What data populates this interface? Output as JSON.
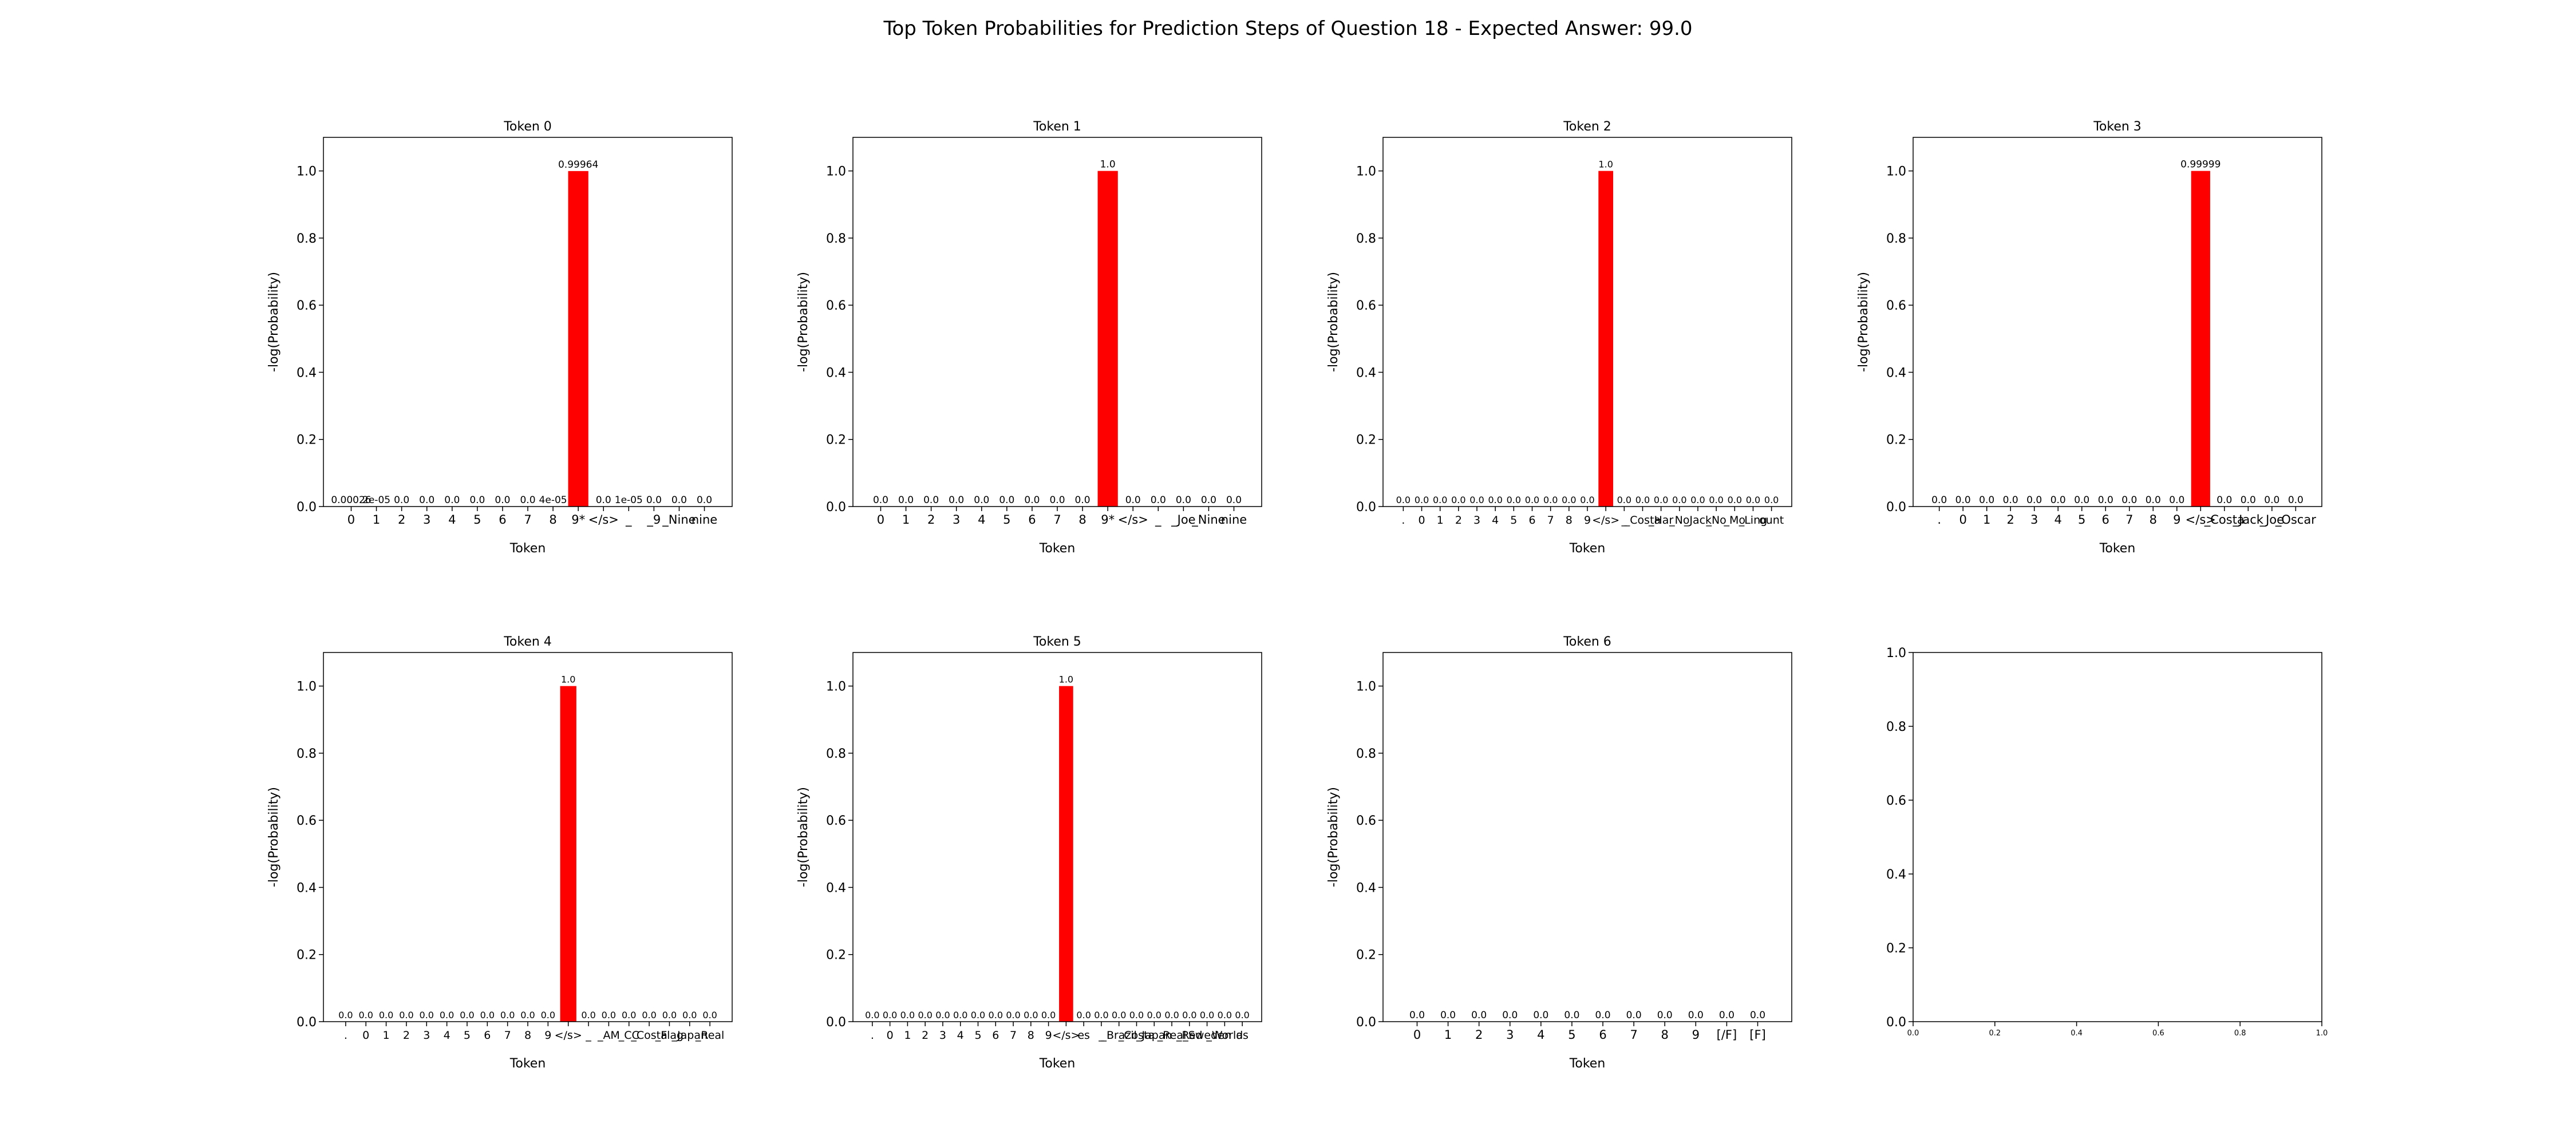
{
  "figure": {
    "title": "Top Token Probabilities for Prediction Steps of Question 18 - Expected Answer: 99.0"
  },
  "chart_data": [
    {
      "type": "bar",
      "title": "Token 0",
      "xlabel": "Token",
      "ylabel": "-log(Probability)",
      "ylim": [
        0,
        1.1
      ],
      "yticks": [
        "0.0",
        "0.2",
        "0.4",
        "0.6",
        "0.8",
        "1.0"
      ],
      "categories": [
        "0",
        "1",
        "2",
        "3",
        "4",
        "5",
        "6",
        "7",
        "8",
        "9*",
        "</s>",
        "_",
        "_9",
        "_Nine",
        "nine"
      ],
      "values": [
        0.00026,
        2e-05,
        0,
        0,
        0,
        0,
        0,
        0,
        4e-05,
        0.99964,
        0,
        1e-05,
        0,
        0,
        0
      ],
      "value_labels": [
        "0.00026",
        "2e-05",
        "0.0",
        "0.0",
        "0.0",
        "0.0",
        "0.0",
        "0.0",
        "4e-05",
        "0.99964",
        "0.0",
        "1e-05",
        "0.0",
        "0.0",
        "0.0"
      ],
      "bar_color": "#ff0000"
    },
    {
      "type": "bar",
      "title": "Token 1",
      "xlabel": "Token",
      "ylabel": "-log(Probability)",
      "ylim": [
        0,
        1.1
      ],
      "yticks": [
        "0.0",
        "0.2",
        "0.4",
        "0.6",
        "0.8",
        "1.0"
      ],
      "categories": [
        "0",
        "1",
        "2",
        "3",
        "4",
        "5",
        "6",
        "7",
        "8",
        "9*",
        "</s>",
        "_",
        "_Joe",
        "_Nine",
        "nine"
      ],
      "values": [
        0,
        0,
        0,
        0,
        0,
        0,
        0,
        0,
        0,
        1.0,
        0,
        0,
        0,
        0,
        0
      ],
      "value_labels": [
        "0.0",
        "0.0",
        "0.0",
        "0.0",
        "0.0",
        "0.0",
        "0.0",
        "0.0",
        "0.0",
        "1.0",
        "0.0",
        "0.0",
        "0.0",
        "0.0",
        "0.0"
      ],
      "bar_color": "#ff0000"
    },
    {
      "type": "bar",
      "title": "Token 2",
      "xlabel": "Token",
      "ylabel": "-log(Probability)",
      "ylim": [
        0,
        1.1
      ],
      "yticks": [
        "0.0",
        "0.2",
        "0.4",
        "0.6",
        "0.8",
        "1.0"
      ],
      "categories": [
        ".",
        "0",
        "1",
        "2",
        "3",
        "4",
        "5",
        "6",
        "7",
        "8",
        "9",
        "</s>",
        "_",
        "_Costa",
        "_Har",
        "_No",
        "_Jack",
        "_No",
        "_Mo",
        "_Ling",
        "ount"
      ],
      "values": [
        0,
        0,
        0,
        0,
        0,
        0,
        0,
        0,
        0,
        0,
        0,
        1.0,
        0,
        0,
        0,
        0,
        0,
        0,
        0,
        0,
        0
      ],
      "value_labels": [
        "0.0",
        "0.0",
        "0.0",
        "0.0",
        "0.0",
        "0.0",
        "0.0",
        "0.0",
        "0.0",
        "0.0",
        "0.0",
        "1.0",
        "0.0",
        "0.0",
        "0.0",
        "0.0",
        "0.0",
        "0.0",
        "0.0",
        "0.0",
        "0.0"
      ],
      "bar_color": "#ff0000"
    },
    {
      "type": "bar",
      "title": "Token 3",
      "xlabel": "Token",
      "ylabel": "-log(Probability)",
      "ylim": [
        0,
        1.1
      ],
      "yticks": [
        "0.0",
        "0.2",
        "0.4",
        "0.6",
        "0.8",
        "1.0"
      ],
      "categories": [
        ".",
        "0",
        "1",
        "2",
        "3",
        "4",
        "5",
        "6",
        "7",
        "8",
        "9",
        "</s>",
        "_Costa",
        "_Jack",
        "_Joe",
        "_Oscar"
      ],
      "values": [
        0,
        0,
        0,
        0,
        0,
        0,
        0,
        0,
        0,
        0,
        0,
        0.99999,
        0,
        0,
        0,
        0
      ],
      "value_labels": [
        "0.0",
        "0.0",
        "0.0",
        "0.0",
        "0.0",
        "0.0",
        "0.0",
        "0.0",
        "0.0",
        "0.0",
        "0.0",
        "0.99999",
        "0.0",
        "0.0",
        "0.0",
        "0.0"
      ],
      "bar_color": "#ff0000"
    },
    {
      "type": "bar",
      "title": "Token 4",
      "xlabel": "Token",
      "ylabel": "-log(Probability)",
      "ylim": [
        0,
        1.1
      ],
      "yticks": [
        "0.0",
        "0.2",
        "0.4",
        "0.6",
        "0.8",
        "1.0"
      ],
      "categories": [
        ".",
        "0",
        "1",
        "2",
        "3",
        "4",
        "5",
        "6",
        "7",
        "8",
        "9",
        "</s>",
        "_",
        "_AM",
        "_CC",
        "_Costa",
        "_Flag",
        "_Japan",
        "_Real"
      ],
      "values": [
        0,
        0,
        0,
        0,
        0,
        0,
        0,
        0,
        0,
        0,
        0,
        1.0,
        0,
        0,
        0,
        0,
        0,
        0,
        0
      ],
      "value_labels": [
        "0.0",
        "0.0",
        "0.0",
        "0.0",
        "0.0",
        "0.0",
        "0.0",
        "0.0",
        "0.0",
        "0.0",
        "0.0",
        "1.0",
        "0.0",
        "0.0",
        "0.0",
        "0.0",
        "0.0",
        "0.0",
        "0.0"
      ],
      "bar_color": "#ff0000"
    },
    {
      "type": "bar",
      "title": "Token 5",
      "xlabel": "Token",
      "ylabel": "-log(Probability)",
      "ylim": [
        0,
        1.1
      ],
      "yticks": [
        "0.0",
        "0.2",
        "0.4",
        "0.6",
        "0.8",
        "1.0"
      ],
      "categories": [
        ".",
        "0",
        "1",
        "2",
        "3",
        "4",
        "5",
        "6",
        "7",
        "8",
        "9",
        "</s>",
        "es",
        "_",
        "_Brazil",
        "_Costa",
        "_Japan",
        "_Real",
        "_Red",
        "_Sweden",
        "_World",
        "as"
      ],
      "values": [
        0,
        0,
        0,
        0,
        0,
        0,
        0,
        0,
        0,
        0,
        0,
        1.0,
        0,
        0,
        0,
        0,
        0,
        0,
        0,
        0,
        0,
        0
      ],
      "value_labels": [
        "0.0",
        "0.0",
        "0.0",
        "0.0",
        "0.0",
        "0.0",
        "0.0",
        "0.0",
        "0.0",
        "0.0",
        "0.0",
        "1.0",
        "0.0",
        "0.0",
        "0.0",
        "0.0",
        "0.0",
        "0.0",
        "0.0",
        "0.0",
        "0.0",
        "0.0"
      ],
      "bar_color": "#ff0000"
    },
    {
      "type": "bar",
      "title": "Token 6",
      "xlabel": "Token",
      "ylabel": "-log(Probability)",
      "ylim": [
        0,
        1.1
      ],
      "yticks": [
        "0.0",
        "0.2",
        "0.4",
        "0.6",
        "0.8",
        "1.0"
      ],
      "categories": [
        "0",
        "1",
        "2",
        "3",
        "4",
        "5",
        "6",
        "7",
        "8",
        "9",
        "[/F]",
        "[F]"
      ],
      "values": [
        0,
        0,
        0,
        0,
        0,
        0,
        0,
        0,
        0,
        0,
        0,
        0
      ],
      "value_labels": [
        "0.0",
        "0.0",
        "0.0",
        "0.0",
        "0.0",
        "0.0",
        "0.0",
        "0.0",
        "0.0",
        "0.0",
        "0.0",
        "0.0"
      ],
      "bar_color": "#ff0000"
    },
    {
      "type": "empty",
      "title": "",
      "xlim": [
        0,
        1
      ],
      "ylim": [
        0,
        1
      ],
      "xticks": [
        "0.0",
        "0.2",
        "0.4",
        "0.6",
        "0.8",
        "1.0"
      ],
      "yticks": [
        "0.0",
        "0.2",
        "0.4",
        "0.6",
        "0.8",
        "1.0"
      ]
    }
  ]
}
